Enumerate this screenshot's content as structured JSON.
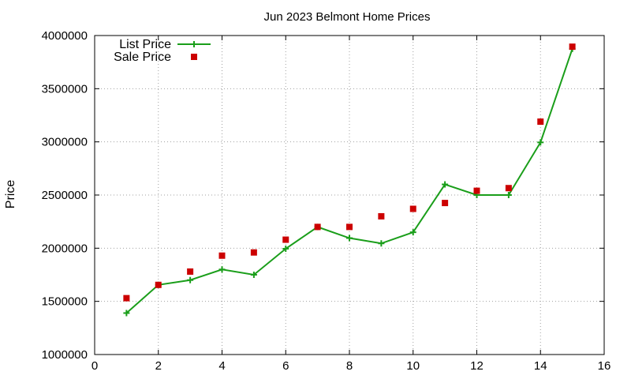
{
  "chart_data": {
    "type": "line",
    "title": "Jun 2023 Belmont Home Prices",
    "xlabel": "",
    "ylabel": "Price",
    "xlim": [
      0,
      16
    ],
    "ylim": [
      1000000,
      4000000
    ],
    "x_ticks": [
      "0",
      "2",
      "4",
      "6",
      "8",
      "10",
      "12",
      "14",
      "16"
    ],
    "y_ticks": [
      "1000000",
      "1500000",
      "2000000",
      "2500000",
      "3000000",
      "3500000",
      "4000000"
    ],
    "grid": true,
    "legend_position": "top-left",
    "series": [
      {
        "name": "List Price",
        "style": "linespoints",
        "color": "#1a9e1a",
        "x": [
          1,
          2,
          3,
          4,
          5,
          6,
          7,
          8,
          9,
          10,
          11,
          12,
          13,
          14,
          15
        ],
        "y": [
          1390000,
          1655000,
          1700000,
          1800000,
          1750000,
          1995000,
          2200000,
          2095000,
          2045000,
          2150000,
          2600000,
          2500000,
          2500000,
          2995000,
          3875000
        ]
      },
      {
        "name": "Sale Price",
        "style": "points",
        "color": "#cc0000",
        "x": [
          1,
          2,
          3,
          4,
          5,
          6,
          7,
          8,
          9,
          10,
          11,
          12,
          13,
          14,
          15
        ],
        "y": [
          1530000,
          1655000,
          1780000,
          1930000,
          1960000,
          2080000,
          2200000,
          2200000,
          2300000,
          2370000,
          2425000,
          2540000,
          2565000,
          3190000,
          3895000
        ]
      }
    ]
  }
}
